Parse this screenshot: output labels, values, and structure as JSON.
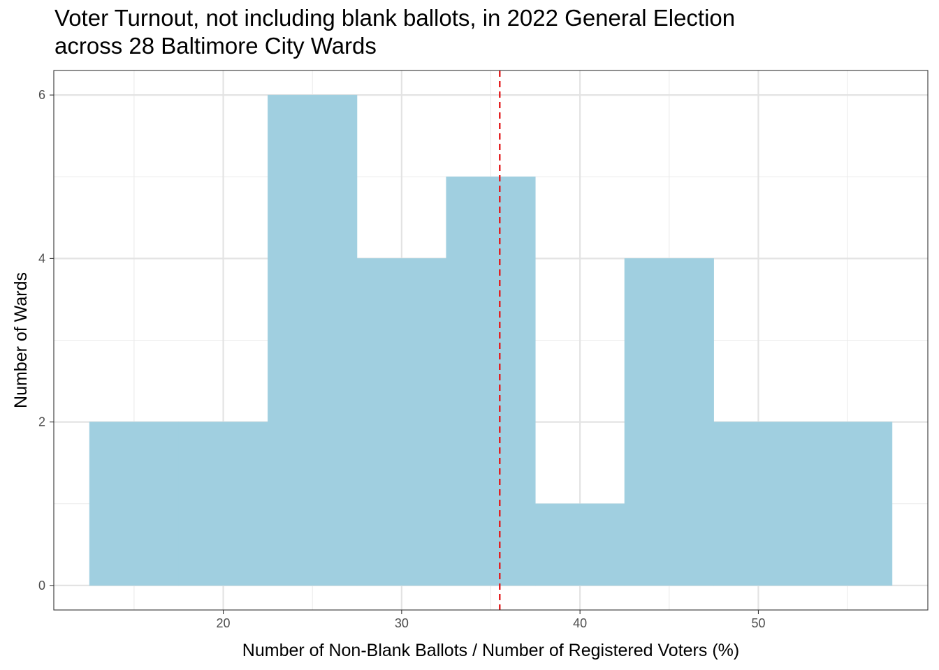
{
  "chart_data": {
    "type": "bar",
    "subtype": "histogram",
    "title_lines": [
      "Voter Turnout, not including blank ballots, in 2022 General Election",
      "across 28 Baltimore City Wards"
    ],
    "xlabel": "Number of Non-Blank Ballots / Number of Registered Voters (%)",
    "ylabel": "Number of Wards",
    "xlim": [
      10.5,
      59.5
    ],
    "ylim": [
      -0.3,
      6.3
    ],
    "x_ticks": [
      20,
      30,
      40,
      50
    ],
    "y_ticks": [
      0,
      2,
      4,
      6
    ],
    "x_minor_ticks": [
      15,
      25,
      35,
      45,
      55
    ],
    "y_minor_ticks": [
      1,
      3,
      5
    ],
    "bins": [
      {
        "x0": 12.5,
        "x1": 17.5,
        "count": 2
      },
      {
        "x0": 17.5,
        "x1": 22.5,
        "count": 2
      },
      {
        "x0": 22.5,
        "x1": 27.5,
        "count": 6
      },
      {
        "x0": 27.5,
        "x1": 32.5,
        "count": 4
      },
      {
        "x0": 32.5,
        "x1": 37.5,
        "count": 5
      },
      {
        "x0": 37.5,
        "x1": 42.5,
        "count": 1
      },
      {
        "x0": 42.5,
        "x1": 47.5,
        "count": 4
      },
      {
        "x0": 47.5,
        "x1": 52.5,
        "count": 2
      },
      {
        "x0": 52.5,
        "x1": 57.5,
        "count": 2
      }
    ],
    "reference_line": {
      "x": 35.5,
      "style": "dashed",
      "color": "#e31a1c"
    },
    "bar_color": "#a0cfe0",
    "grid": true,
    "legend": "none"
  }
}
